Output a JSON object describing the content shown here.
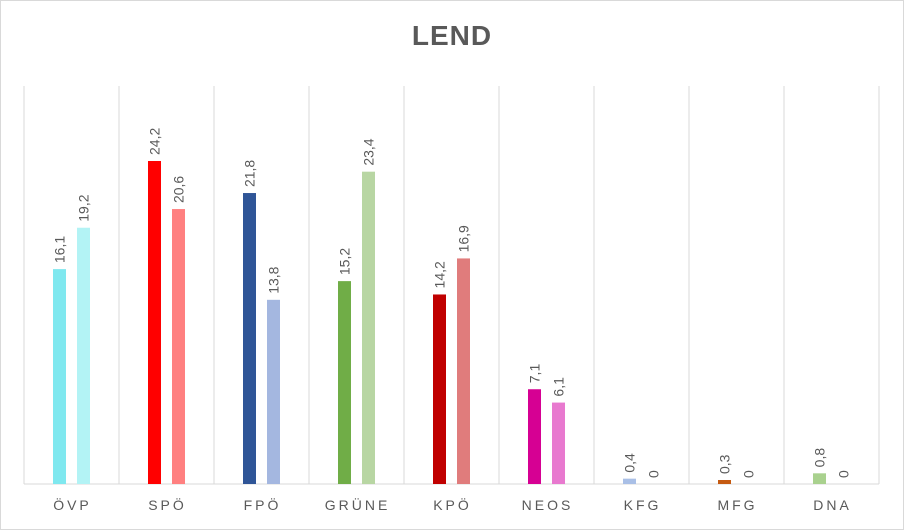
{
  "chart_data": {
    "type": "bar",
    "title": "LEND",
    "categories": [
      "ÖVP",
      "SPÖ",
      "FPÖ",
      "GRÜNE",
      "KPÖ",
      "NEOS",
      "KFG",
      "MFG",
      "DNA"
    ],
    "series": [
      {
        "values": [
          16.1,
          24.2,
          21.8,
          15.2,
          14.2,
          7.1,
          0.4,
          0.3,
          0.8
        ],
        "labels": [
          "16,1",
          "24,2",
          "21,8",
          "15,2",
          "14,2",
          "7,1",
          "0,4",
          "0,3",
          "0,8"
        ],
        "colors": [
          "#7fe8ef",
          "#ff0000",
          "#2f5597",
          "#70ad47",
          "#c00000",
          "#d60093",
          "#a9bfe6",
          "#c55a11",
          "#a9d18e"
        ]
      },
      {
        "values": [
          19.2,
          20.6,
          13.8,
          23.4,
          16.9,
          6.1,
          0,
          0,
          0
        ],
        "labels": [
          "19,2",
          "20,6",
          "13,8",
          "23,4",
          "16,9",
          "6,1",
          "0",
          "0",
          "0"
        ],
        "colors": [
          "#b3f3f5",
          "#ff8080",
          "#a4b7e0",
          "#b8d6a3",
          "#e07c7c",
          "#e879cf",
          "#c9d6ef",
          "#e6a37a",
          "#c8e3b6"
        ]
      }
    ],
    "ylim": [
      0,
      26
    ],
    "grid": "vertical category dividers",
    "data_labels": "rotated, above bars"
  }
}
